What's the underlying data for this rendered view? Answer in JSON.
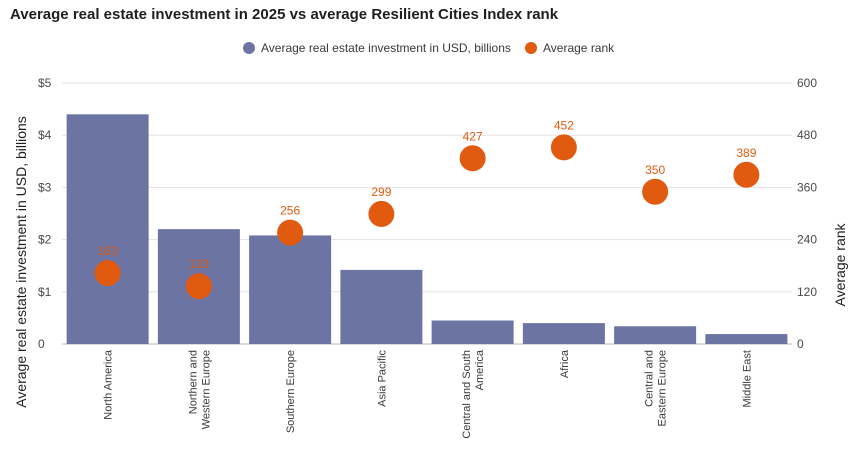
{
  "chart_data": {
    "type": "bar+scatter",
    "title": "Average real estate investment in 2025 vs average Resilient Cities Index rank",
    "categories": [
      "North America",
      "Northern and Western Europe",
      "Southern Europe",
      "Asia Pacific",
      "Central and South America",
      "Africa",
      "Central and Eastern Europe",
      "Middle East"
    ],
    "category_lines": [
      [
        "North America"
      ],
      [
        "Northern and",
        "Western Europe"
      ],
      [
        "Southern Europe"
      ],
      [
        "Asia Pacific"
      ],
      [
        "Central and South",
        "America"
      ],
      [
        "Africa"
      ],
      [
        "Central and",
        "Eastern Europe"
      ],
      [
        "Middle East"
      ]
    ],
    "series": [
      {
        "name": "Average real estate investment in USD, billions",
        "type": "bar",
        "axis": "left",
        "color": "#6b74a3",
        "values": [
          4.4,
          2.2,
          2.08,
          1.42,
          0.45,
          0.4,
          0.34,
          0.19
        ]
      },
      {
        "name": "Average rank",
        "type": "scatter",
        "axis": "right",
        "color": "#e05a10",
        "values": [
          163,
          133,
          256,
          299,
          427,
          452,
          350,
          389
        ],
        "labels": [
          "163",
          "133",
          "256",
          "299",
          "427",
          "452",
          "350",
          "389"
        ]
      }
    ],
    "y_left": {
      "label": "Average real estate investment in USD, billions",
      "ylim": [
        0,
        5
      ],
      "ticks": [
        0,
        1,
        2,
        3,
        4,
        5
      ],
      "tick_labels": [
        "0",
        "$1",
        "$2",
        "$3",
        "$4",
        "$5"
      ]
    },
    "y_right": {
      "label": "Average rank",
      "ylim": [
        0,
        600
      ],
      "ticks": [
        0,
        120,
        240,
        360,
        480,
        600
      ],
      "tick_labels": [
        "0",
        "120",
        "240",
        "360",
        "480",
        "600"
      ]
    },
    "grid": true,
    "legend_position": "top-center"
  }
}
